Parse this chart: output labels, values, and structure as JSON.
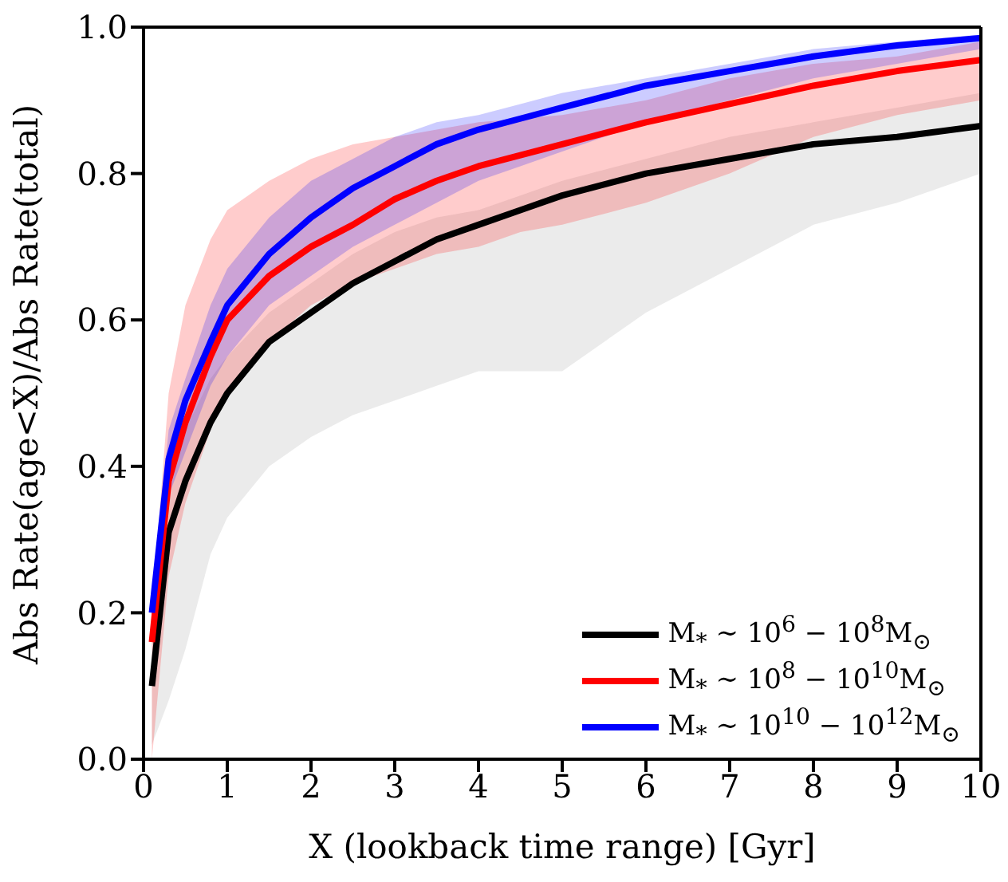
{
  "chart_data": {
    "type": "line",
    "xlabel": "X (lookback time range) [Gyr]",
    "ylabel": "Abs Rate(age<X)/Abs Rate(total)",
    "x": [
      0.1,
      0.3,
      0.5,
      0.8,
      1,
      1.5,
      2,
      2.5,
      3,
      3.5,
      4,
      4.5,
      5,
      6,
      7,
      8,
      9,
      10
    ],
    "series": [
      {
        "name": "M$_{*}$ ∼ 10$^{6}$ − 10$^{8}$M$_{⊙}$",
        "color": "#000000",
        "values": [
          0.1,
          0.31,
          0.38,
          0.46,
          0.5,
          0.57,
          0.61,
          0.65,
          0.68,
          0.71,
          0.73,
          0.75,
          0.77,
          0.8,
          0.82,
          0.84,
          0.85,
          0.865
        ],
        "lower": [
          0.02,
          0.08,
          0.15,
          0.28,
          0.33,
          0.4,
          0.44,
          0.47,
          0.49,
          0.51,
          0.53,
          0.53,
          0.53,
          0.61,
          0.67,
          0.73,
          0.76,
          0.8
        ],
        "upper": [
          0.2,
          0.36,
          0.45,
          0.52,
          0.55,
          0.61,
          0.65,
          0.69,
          0.72,
          0.74,
          0.75,
          0.77,
          0.79,
          0.82,
          0.85,
          0.87,
          0.89,
          0.91
        ]
      },
      {
        "name": "M$_{*}$ ∼ 10$^{8}$ − 10$^{10}$M$_{⊙}$",
        "color": "#ff0000",
        "values": [
          0.16,
          0.38,
          0.46,
          0.55,
          0.6,
          0.66,
          0.7,
          0.73,
          0.765,
          0.79,
          0.81,
          0.825,
          0.84,
          0.87,
          0.895,
          0.92,
          0.94,
          0.955
        ],
        "lower": [
          0.0,
          0.25,
          0.35,
          0.45,
          0.5,
          0.57,
          0.62,
          0.65,
          0.67,
          0.69,
          0.7,
          0.72,
          0.73,
          0.76,
          0.8,
          0.85,
          0.88,
          0.9
        ],
        "upper": [
          0.2,
          0.5,
          0.62,
          0.71,
          0.75,
          0.79,
          0.82,
          0.84,
          0.85,
          0.86,
          0.87,
          0.875,
          0.88,
          0.9,
          0.93,
          0.95,
          0.96,
          0.98
        ]
      },
      {
        "name": "M$_{*}$ ∼ 10$^{10}$ − 10$^{12}$M$_{⊙}$",
        "color": "#0000ff",
        "values": [
          0.2,
          0.41,
          0.49,
          0.57,
          0.62,
          0.69,
          0.74,
          0.78,
          0.81,
          0.84,
          0.86,
          0.875,
          0.89,
          0.92,
          0.94,
          0.96,
          0.975,
          0.985
        ],
        "lower": [
          0.18,
          0.36,
          0.42,
          0.51,
          0.55,
          0.62,
          0.66,
          0.7,
          0.73,
          0.76,
          0.79,
          0.81,
          0.83,
          0.87,
          0.9,
          0.93,
          0.95,
          0.97
        ],
        "upper": [
          0.22,
          0.45,
          0.52,
          0.62,
          0.67,
          0.74,
          0.79,
          0.82,
          0.85,
          0.87,
          0.88,
          0.895,
          0.91,
          0.93,
          0.95,
          0.97,
          0.98,
          0.99
        ]
      }
    ],
    "xlim": [
      0,
      10
    ],
    "xticks": [
      0,
      1,
      2,
      3,
      4,
      5,
      6,
      7,
      8,
      9,
      10
    ],
    "ylim": [
      0,
      1
    ],
    "yticks": [
      {
        "value": 0,
        "label": "0.0"
      },
      0.2,
      0.4,
      0.6,
      0.8,
      {
        "value": 1,
        "label": "1.0"
      }
    ],
    "grid": false,
    "legend": "bottom right",
    "marker": "none",
    "line_style": "solid"
  }
}
